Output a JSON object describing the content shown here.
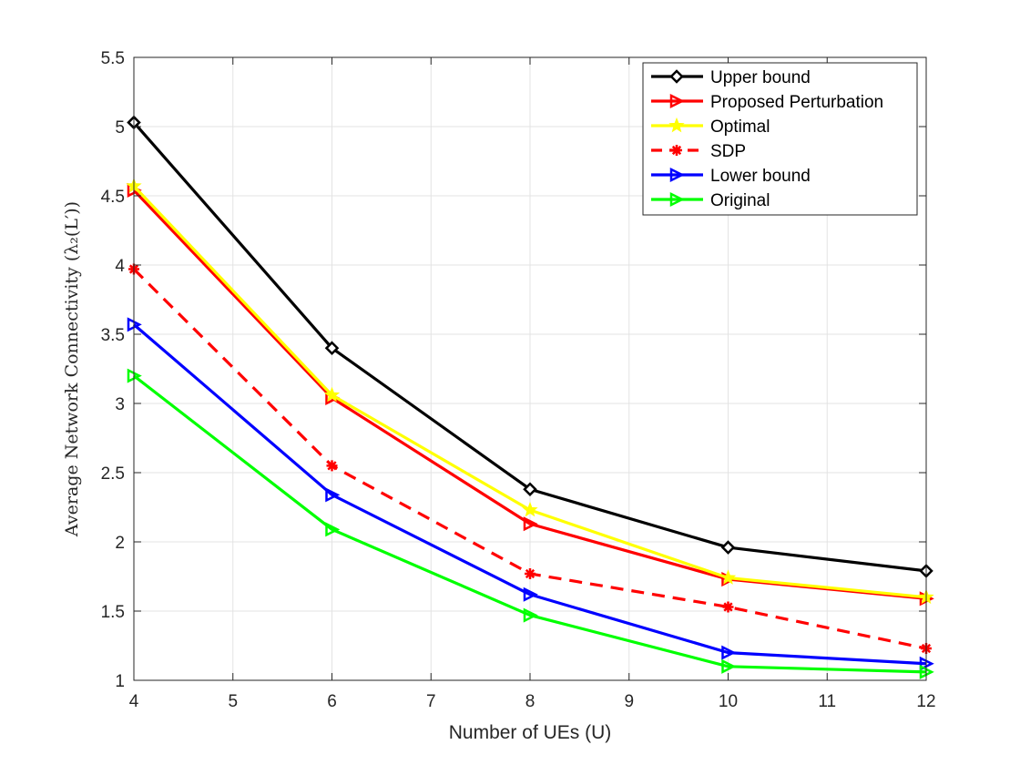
{
  "chart_data": {
    "type": "line",
    "title": "",
    "xlabel": "Number of UEs (U)",
    "ylabel": "Average Network Connectivity (λ₂(L′))",
    "xlim": [
      4,
      12
    ],
    "ylim": [
      1,
      5.5
    ],
    "xticks": [
      4,
      5,
      6,
      7,
      8,
      9,
      10,
      11,
      12
    ],
    "yticks": [
      1,
      1.5,
      2,
      2.5,
      3,
      3.5,
      4,
      4.5,
      5,
      5.5
    ],
    "xtick_labels": [
      "4",
      "5",
      "6",
      "7",
      "8",
      "9",
      "10",
      "11",
      "12"
    ],
    "ytick_labels": [
      "1",
      "1.5",
      "2",
      "2.5",
      "3",
      "3.5",
      "4",
      "4.5",
      "5",
      "5.5"
    ],
    "grid": true,
    "legend_position": "top-right",
    "x": [
      4,
      6,
      8,
      10,
      12
    ],
    "series": [
      {
        "name": "Upper bound",
        "color": "#000000",
        "dash": "solid",
        "marker": "diamond",
        "values": [
          5.03,
          3.4,
          2.38,
          1.96,
          1.79
        ]
      },
      {
        "name": "Proposed Perturbation",
        "color": "#ff0000",
        "dash": "solid",
        "marker": "triangle-right",
        "values": [
          4.54,
          3.04,
          2.13,
          1.73,
          1.59
        ]
      },
      {
        "name": "Optimal",
        "color": "#ffff00",
        "dash": "solid",
        "marker": "star",
        "values": [
          4.57,
          3.06,
          2.23,
          1.74,
          1.6
        ]
      },
      {
        "name": "SDP",
        "color": "#ff0000",
        "dash": "dashed",
        "marker": "asterisk",
        "values": [
          3.97,
          2.55,
          1.77,
          1.53,
          1.23
        ]
      },
      {
        "name": "Lower bound",
        "color": "#0000ff",
        "dash": "solid",
        "marker": "triangle-right",
        "values": [
          3.57,
          2.34,
          1.62,
          1.2,
          1.12
        ]
      },
      {
        "name": "Original",
        "color": "#00ff00",
        "dash": "solid",
        "marker": "triangle-right",
        "values": [
          3.2,
          2.09,
          1.47,
          1.1,
          1.06
        ]
      }
    ]
  }
}
